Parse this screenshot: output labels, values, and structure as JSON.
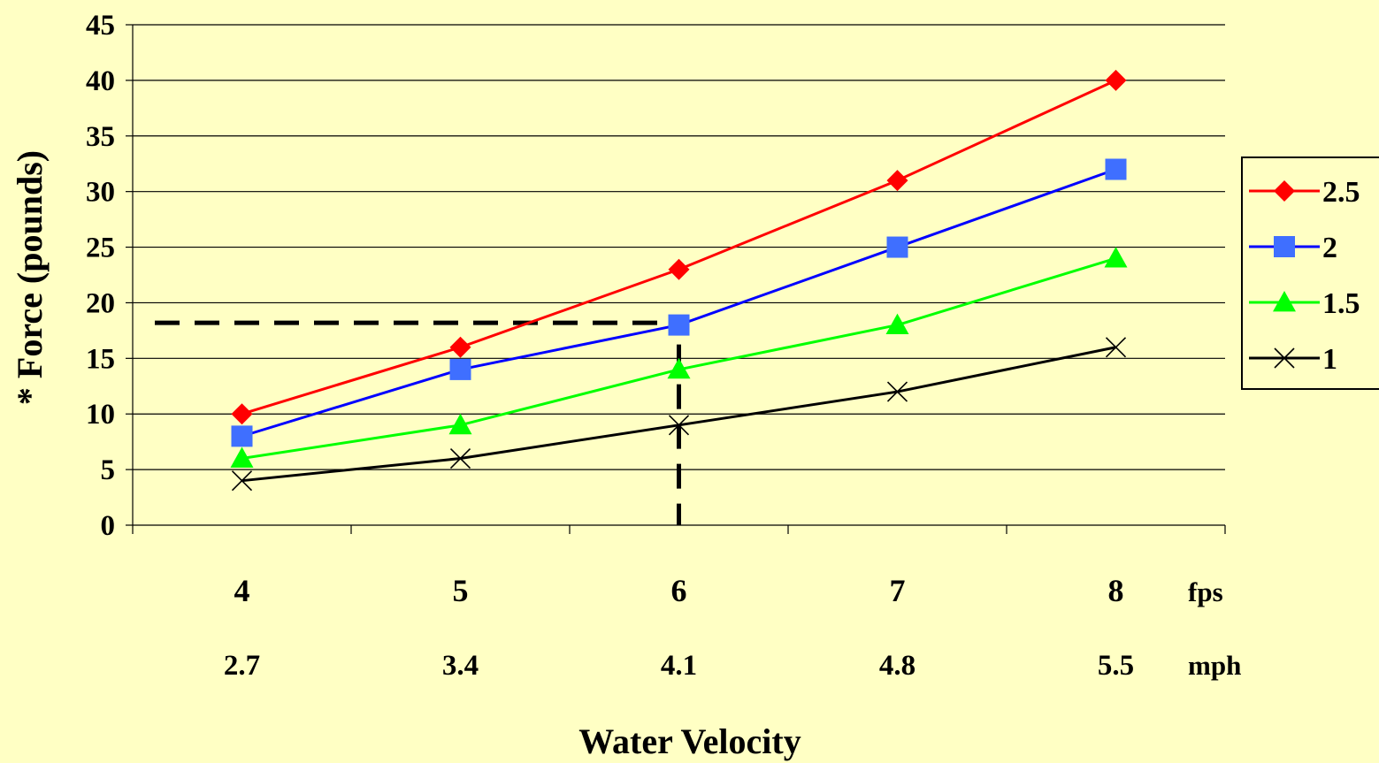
{
  "chart_data": {
    "type": "line",
    "categories": [
      "4",
      "5",
      "6",
      "7",
      "8"
    ],
    "x_unit_label": "fps",
    "secondary_categories": [
      "2.7",
      "3.4",
      "4.1",
      "4.8",
      "5.5"
    ],
    "secondary_unit_label": "mph",
    "xlabel": "Water Velocity",
    "ylabel": "* Force (pounds)",
    "ylim": [
      0,
      45
    ],
    "y_ticks": [
      "0",
      "5",
      "10",
      "15",
      "20",
      "25",
      "30",
      "35",
      "40",
      "45"
    ],
    "grid": "horizontal",
    "legend_position": "right",
    "series": [
      {
        "name": "2.5",
        "values": [
          10,
          16,
          23,
          31,
          40
        ],
        "color": "#FF0000",
        "marker": "diamond"
      },
      {
        "name": "2",
        "values": [
          8,
          14,
          18,
          25,
          32
        ],
        "color": "#0000FF",
        "marker_color": "#3F6FFF",
        "marker": "square"
      },
      {
        "name": "1.5",
        "values": [
          6,
          9,
          14,
          18,
          24
        ],
        "color": "#00FF00",
        "marker": "triangle"
      },
      {
        "name": "1",
        "values": [
          4,
          6,
          9,
          12,
          16
        ],
        "color": "#000000",
        "marker": "x"
      }
    ],
    "annotations": [
      {
        "type": "dashed-horizontal",
        "y": 18.2,
        "x_to": "6"
      },
      {
        "type": "dashed-vertical",
        "x": "6",
        "y_from": 18
      }
    ]
  }
}
